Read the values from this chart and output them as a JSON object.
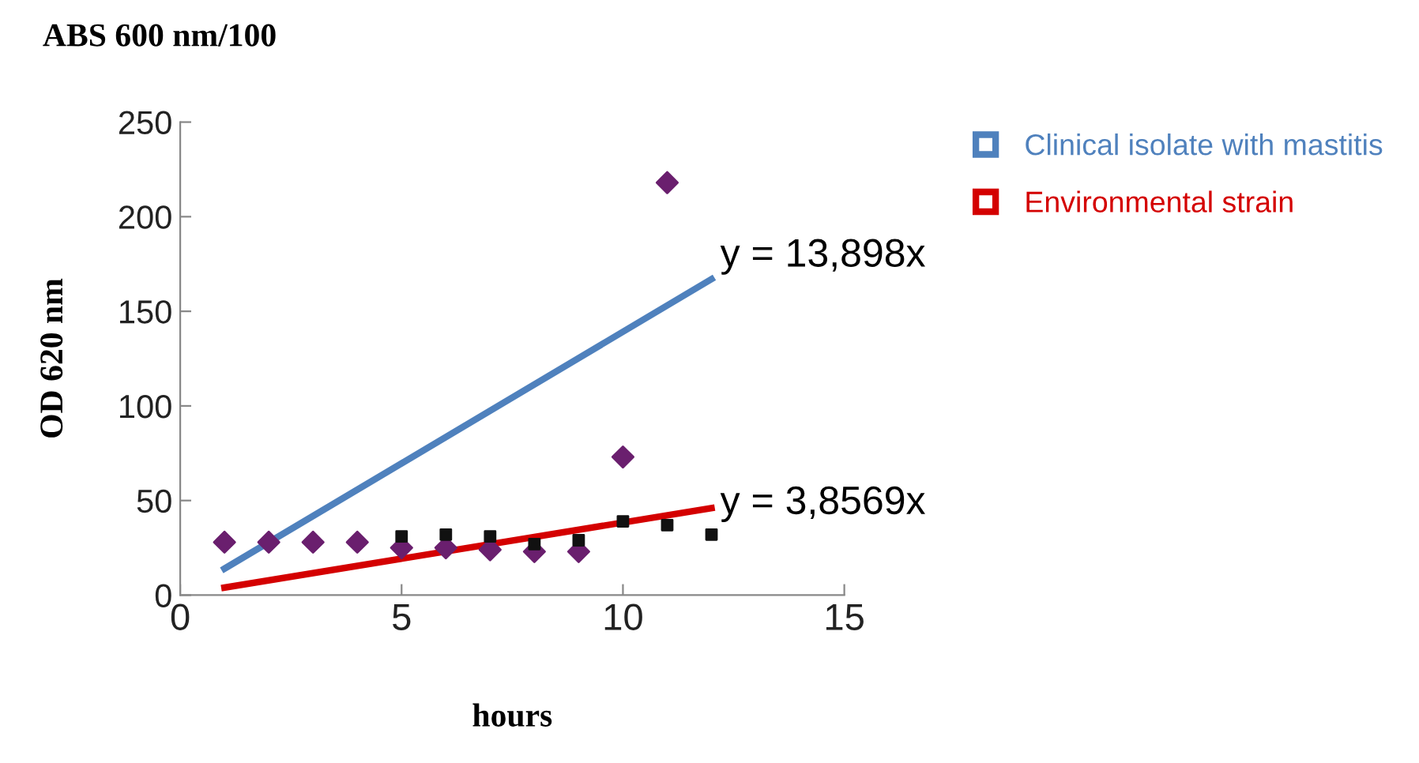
{
  "chart_data": {
    "type": "scatter",
    "title": "ABS 600 nm/100",
    "xlabel": "hours",
    "ylabel": "OD 620 nm",
    "xlim": [
      0,
      15
    ],
    "xticks": [
      0,
      5,
      10,
      15
    ],
    "ylim": [
      0,
      250
    ],
    "yticks": [
      0,
      50,
      100,
      150,
      200,
      250
    ],
    "grid": false,
    "legend": "top right",
    "series": [
      {
        "marker": "diamond",
        "color": "#6a1f6e",
        "x": [
          1,
          2,
          3,
          4,
          5,
          6,
          7,
          8,
          9,
          10,
          11
        ],
        "values": [
          28,
          28,
          28,
          28,
          25,
          25,
          24,
          23,
          23,
          73,
          218
        ]
      },
      {
        "marker": "square",
        "color": "#111111",
        "x": [
          5,
          6,
          7,
          8,
          9,
          10,
          11,
          12
        ],
        "values": [
          31,
          32,
          31,
          27,
          29,
          39,
          37,
          32
        ]
      },
      {
        "type": "line",
        "name": "Clinical isolate with mastitis",
        "color": "#4f81bd",
        "x": [
          1,
          12
        ],
        "values": [
          14,
          167
        ]
      },
      {
        "type": "line",
        "name": "Environmental strain",
        "color": "#d40000",
        "x": [
          1,
          12
        ],
        "values": [
          4,
          46
        ]
      }
    ],
    "annotations": [
      {
        "text": "y = 13,898x",
        "x": 12,
        "y": 167
      },
      {
        "text": "y = 3,8569x",
        "x": 12,
        "y": 46
      }
    ]
  }
}
